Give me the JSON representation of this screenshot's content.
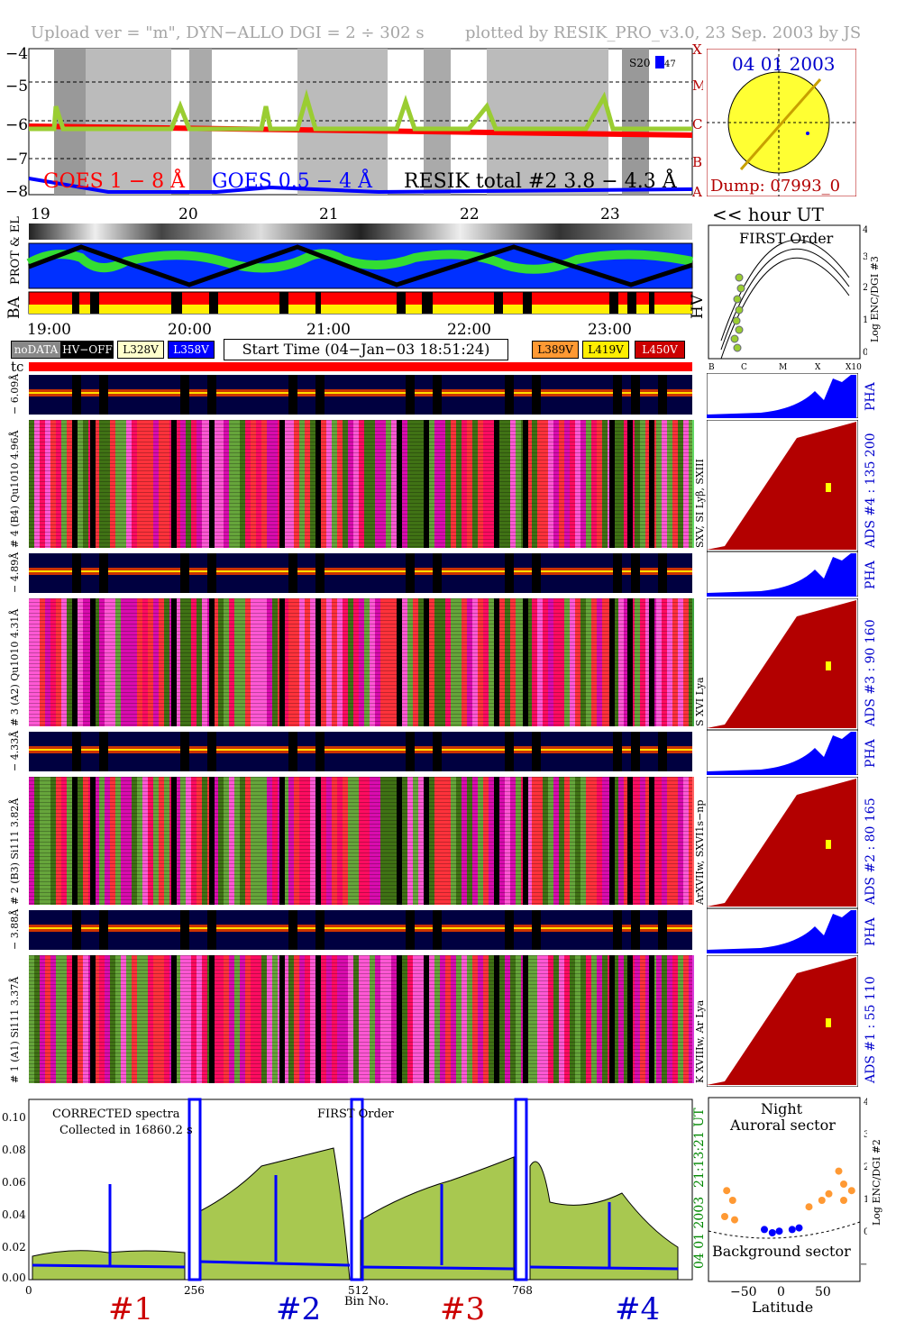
{
  "header": {
    "left": "Upload ver = \"m\", DYN−ALLO DGI =   2 ÷ 302 s",
    "right": "plotted by RESIK_PRO_v3.0, 23 Sep. 2003 by JS"
  },
  "goes_panel": {
    "yticks": [
      "−4",
      "−5",
      "−6",
      "−7",
      "−8"
    ],
    "class_letters": [
      "X",
      "M",
      "C",
      "B",
      "A"
    ],
    "label_goes_long": "GOES 1 − 8 Å",
    "label_goes_short": "GOES 0.5 − 4 Å",
    "label_resik": "RESIK total #2  3.8 − 4.3 Å",
    "saa_tag": "S20",
    "saa_num": "47"
  },
  "sun_panel": {
    "date": "04 01 2003",
    "dump": "Dump: 07993_0"
  },
  "hour_axis": {
    "ticks": [
      "19",
      "20",
      "21",
      "22",
      "23"
    ],
    "unit_label": "<< hour UT"
  },
  "orbit_panel": {
    "label_protel": "PROT & EL",
    "label_ba": "BA",
    "label_hv": "HV",
    "time_ticks": [
      "19:00",
      "20:00",
      "21:00",
      "22:00",
      "23:00"
    ]
  },
  "legend": {
    "nodata": "noDATA",
    "hvoff": "HV−OFF",
    "l328": "L328V",
    "l358": "L358V",
    "start_time": "Start Time (04−Jan−03 18:51:24)",
    "l389": "L389V",
    "l419": "L419V",
    "l450": "L450V",
    "tc": "tc"
  },
  "colors": {
    "goes_long": "#ff0000",
    "goes_short": "#0000ff",
    "resik": "#9acd32",
    "sun": "#ffff33",
    "dark_red": "#b30000",
    "pha_blue": "#0000ff",
    "spectrum_fill": "#a8c850"
  },
  "first_order_panel": {
    "title": "FIRST Order",
    "yticks": [
      "4",
      "3",
      "2",
      "1",
      "0"
    ],
    "xticks": [
      "B",
      "C",
      "M",
      "X",
      "X10"
    ],
    "ylabel": "Log ENC/DGI #3"
  },
  "channels": [
    {
      "pha_label": "− 6.09Å",
      "label": "# 4 (B4) Qu1010 4.96Å",
      "side_label": "SXV, SI Lyβ, SXIII",
      "ads": "ADS #4 :  135 200"
    },
    {
      "pha_label": "− 4.89Å",
      "label": "# 3 (A2) Qu1010 4.31Å",
      "side_label": "S XVI Lya",
      "ads": "ADS #3 :   90 160"
    },
    {
      "pha_label": "− 4.33Å",
      "label": "# 2 (B3) Si111 3.82Å",
      "side_label": "ArXVIIw, SXVI1s−np",
      "ads": "ADS #2 :   80 165"
    },
    {
      "pha_label": "− 3.88Å",
      "label": "# 1 (A1) Si111 3.37Å",
      "side_label": "K XVIIIw, Ar Lya",
      "ads": "ADS #1 :   55 110"
    }
  ],
  "pha_label": "PHA",
  "spectrum_panel": {
    "title1": "CORRECTED spectra",
    "title2": "Collected in 16860.2 s",
    "title3": "FIRST Order",
    "yticks": [
      "0.10",
      "0.08",
      "0.06",
      "0.04",
      "0.02",
      "0.00"
    ],
    "xticks": [
      "0",
      "256",
      "512",
      "768"
    ],
    "xlabel": "Bin No.",
    "side_time": "21:13:21 UT",
    "side_date": "04 01 2003",
    "bin_labels": [
      "#1",
      "#2",
      "#3",
      "#4"
    ]
  },
  "latitude_panel": {
    "title1": "Night",
    "title2": "Auroral sector",
    "bottom_label": "Background sector",
    "xticks": [
      "−50",
      "0",
      "50"
    ],
    "yticks": [
      "4",
      "3",
      "2",
      "1",
      "0",
      "−1"
    ],
    "ylabel": "Log ENC/DGI #2",
    "xlabel": "Latitude",
    "points_orange": [
      [
        -58,
        1.3
      ],
      [
        -52,
        1.0
      ],
      [
        -60,
        0.5
      ],
      [
        -50,
        0.4
      ],
      [
        25,
        0.8
      ],
      [
        38,
        1.0
      ],
      [
        45,
        1.2
      ],
      [
        55,
        1.9
      ],
      [
        60,
        1.5
      ],
      [
        68,
        1.3
      ],
      [
        60,
        1.0
      ]
    ],
    "points_blue": [
      [
        -20,
        0.1
      ],
      [
        -12,
        0.0
      ],
      [
        -5,
        0.05
      ],
      [
        8,
        0.1
      ],
      [
        15,
        0.15
      ]
    ]
  },
  "chart_data": {
    "type": "line",
    "title": "CORRECTED spectra",
    "xlabel": "Bin No.",
    "ylabel": "",
    "xlim": [
      0,
      1024
    ],
    "ylim": [
      0,
      0.11
    ],
    "series": [
      {
        "name": "",
        "x": [
          0,
          128,
          256,
          320,
          400,
          480,
          512,
          600,
          700,
          768,
          830,
          900,
          1000
        ],
        "values": [
          0.01,
          0.015,
          0.008,
          0.04,
          0.055,
          0.07,
          0.015,
          0.04,
          0.055,
          0.01,
          0.07,
          0.04,
          0.012
        ]
      }
    ],
    "x_ticks": [
      "0",
      "256",
      "512",
      "768"
    ],
    "y_ticks": [
      "0.00",
      "0.02",
      "0.04",
      "0.06",
      "0.08",
      "0.10"
    ]
  }
}
